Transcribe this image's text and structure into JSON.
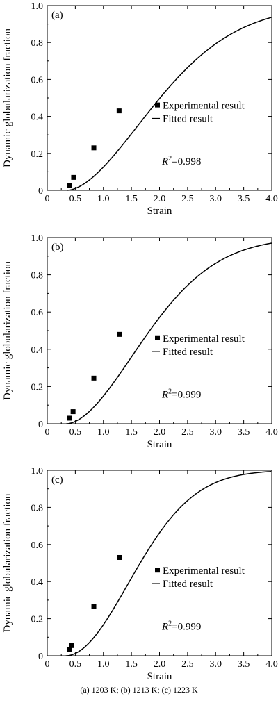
{
  "caption": "(a)  1203  K; (b) 1213 K; (c) 1223 K",
  "chart_data": [
    {
      "type": "line",
      "panel": "(a)",
      "xlabel": "Strain",
      "ylabel": "Dynamic globularization fraction",
      "xlim": [
        0,
        4.0
      ],
      "ylim": [
        0,
        1.0
      ],
      "xticks": [
        "0",
        "0.5",
        "1.0",
        "1.5",
        "2.0",
        "2.5",
        "3.0",
        "3.5",
        "4.0"
      ],
      "yticks": [
        "0",
        "0.2",
        "0.4",
        "0.6",
        "0.8",
        "1.0"
      ],
      "legend": [
        "Experimental result",
        "Fitted result"
      ],
      "annotation": {
        "prefix": "R",
        "sup": "2",
        "value": "=0.998"
      },
      "grid": false,
      "fit": {
        "x0": 0.35,
        "k": 0.286,
        "n": 1.75
      },
      "series": [
        {
          "name": "Experimental result",
          "kind": "scatter",
          "x": [
            0.4,
            0.47,
            0.83,
            1.28
          ],
          "y": [
            0.025,
            0.07,
            0.23,
            0.43
          ]
        },
        {
          "name": "Fitted result",
          "kind": "line"
        }
      ]
    },
    {
      "type": "line",
      "panel": "(b)",
      "xlabel": "Strain",
      "ylabel": "Dynamic globularization fraction",
      "xlim": [
        0,
        4.0
      ],
      "ylim": [
        0,
        1.0
      ],
      "xticks": [
        "0",
        "0.5",
        "1.0",
        "1.5",
        "2.0",
        "2.5",
        "3.0",
        "3.5",
        "4.0"
      ],
      "yticks": [
        "0",
        "0.2",
        "0.4",
        "0.6",
        "0.8",
        "1.0"
      ],
      "legend": [
        "Experimental result",
        "Fitted result"
      ],
      "annotation": {
        "prefix": "R",
        "sup": "2",
        "value": "=0.999"
      },
      "grid": false,
      "fit": {
        "x0": 0.34,
        "k": 0.34,
        "n": 1.8
      },
      "series": [
        {
          "name": "Experimental result",
          "kind": "scatter",
          "x": [
            0.4,
            0.46,
            0.83,
            1.29
          ],
          "y": [
            0.03,
            0.065,
            0.245,
            0.48
          ]
        },
        {
          "name": "Fitted result",
          "kind": "line"
        }
      ]
    },
    {
      "type": "line",
      "panel": "(c)",
      "xlabel": "Strain",
      "ylabel": "Dynamic globularization fraction",
      "xlim": [
        0,
        4.0
      ],
      "ylim": [
        0,
        1.0
      ],
      "xticks": [
        "0",
        "0.5",
        "1.0",
        "1.5",
        "2.0",
        "2.5",
        "3.0",
        "3.5",
        "4.0"
      ],
      "yticks": [
        "0",
        "0.2",
        "0.4",
        "0.6",
        "0.8",
        "1.0"
      ],
      "legend": [
        "Experimental result",
        "Fitted result"
      ],
      "annotation": {
        "prefix": "R",
        "sup": "2",
        "value": "=0.999"
      },
      "grid": false,
      "fit": {
        "x0": 0.33,
        "k": 0.4,
        "n": 1.95
      },
      "series": [
        {
          "name": "Experimental result",
          "kind": "scatter",
          "x": [
            0.39,
            0.43,
            0.83,
            1.29
          ],
          "y": [
            0.035,
            0.055,
            0.265,
            0.53
          ]
        },
        {
          "name": "Fitted result",
          "kind": "line"
        }
      ]
    }
  ]
}
